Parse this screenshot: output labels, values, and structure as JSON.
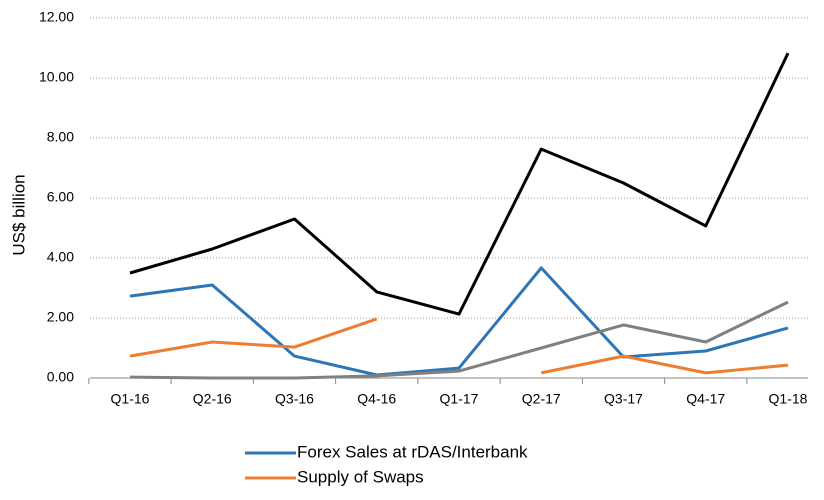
{
  "chart_data": {
    "type": "line",
    "ylabel": "US$ billion",
    "categories": [
      "Q1-16",
      "Q2-16",
      "Q3-16",
      "Q4-16",
      "Q1-17",
      "Q2-17",
      "Q3-17",
      "Q4-17",
      "Q1-18"
    ],
    "series": [
      {
        "name": "Forex Sales at rDAS/Interbank",
        "color": "#2e75b6",
        "values": [
          2.73,
          3.1,
          0.73,
          0.1,
          0.33,
          3.67,
          0.7,
          0.9,
          1.67
        ]
      },
      {
        "name": "Supply of Swaps",
        "color": "#ed7d31",
        "values": [
          0.73,
          1.2,
          1.03,
          1.97,
          null,
          0.17,
          0.73,
          0.17,
          0.43
        ]
      },
      {
        "color": "#000000",
        "values": [
          3.5,
          4.3,
          5.3,
          2.87,
          2.13,
          7.63,
          6.5,
          5.07,
          10.83
        ]
      },
      {
        "color": "#808080",
        "values": [
          0.03,
          0.0,
          0.0,
          0.07,
          0.23,
          1.0,
          1.77,
          1.2,
          2.53
        ]
      }
    ],
    "ylim": [
      0,
      12
    ],
    "yticks": [
      {
        "value": 0,
        "label": "0.00"
      },
      {
        "value": 2,
        "label": "2.00"
      },
      {
        "value": 4,
        "label": "4.00"
      },
      {
        "value": 6,
        "label": "6.00"
      },
      {
        "value": 8,
        "label": "8.00"
      },
      {
        "value": 10,
        "label": "10.00"
      },
      {
        "value": 12,
        "label": "12.00"
      }
    ],
    "grid": true
  }
}
